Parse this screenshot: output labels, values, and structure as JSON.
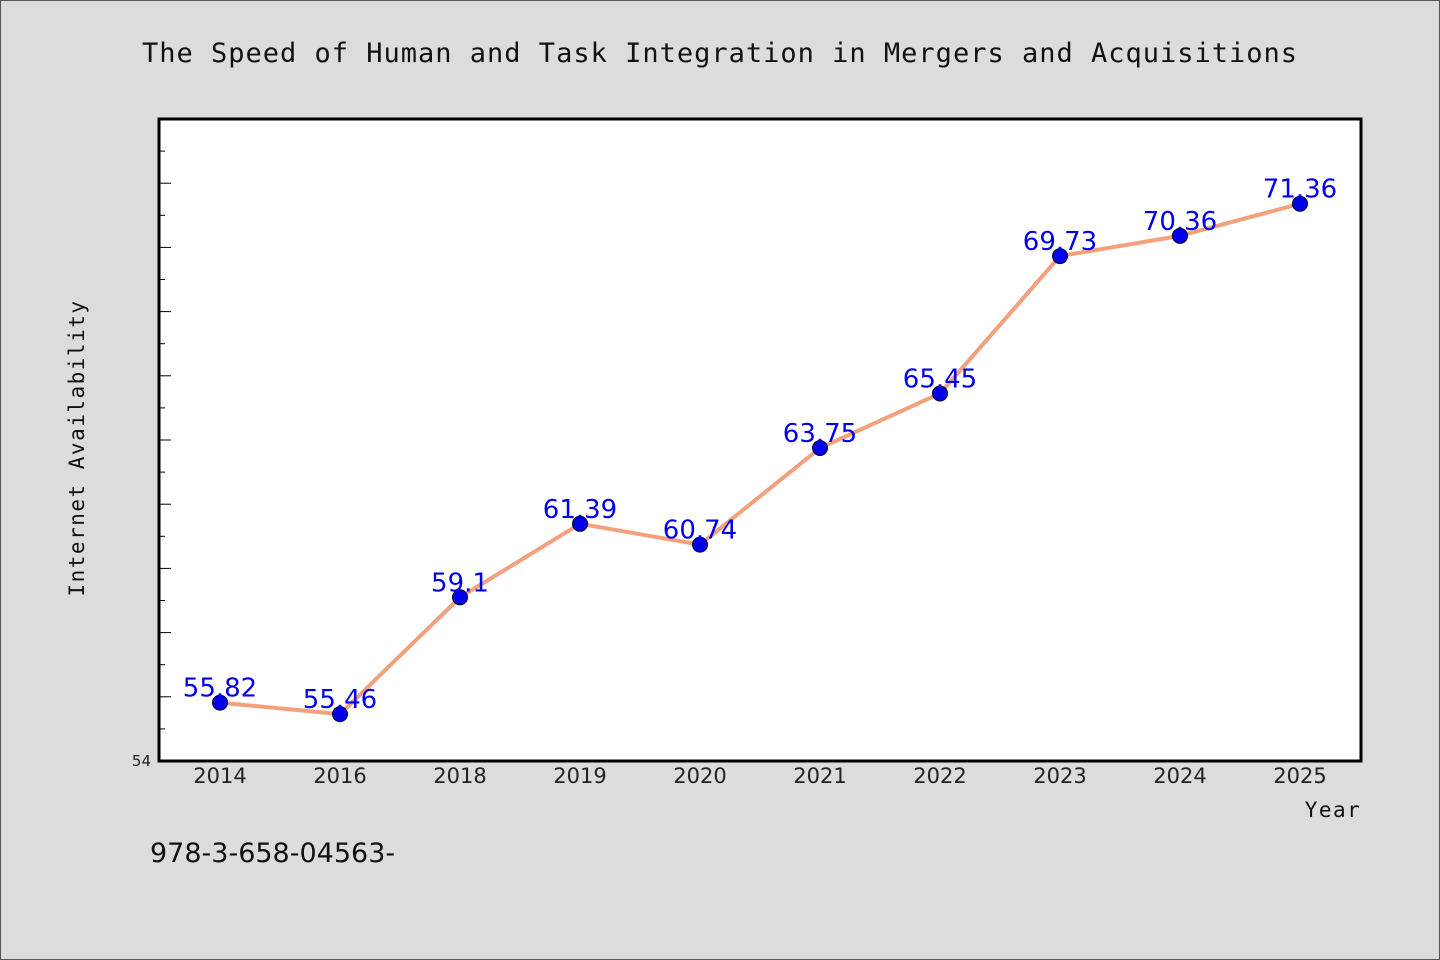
{
  "footer_text": "978-3-658-04563-",
  "chart_data": {
    "type": "line",
    "title": "The Speed of Human and Task Integration in Mergers and Acquisitions",
    "xlabel": "Year",
    "ylabel": "Internet Availability",
    "categories": [
      "2014",
      "2016",
      "2018",
      "2019",
      "2020",
      "2021",
      "2022",
      "2023",
      "2024",
      "2025"
    ],
    "series": [
      {
        "values": [
          55.82,
          55.46,
          59.1,
          61.39,
          60.74,
          63.75,
          65.45,
          69.73,
          70.36,
          71.36
        ]
      }
    ],
    "data_labels": [
      "55.82",
      "55.46",
      "59.1",
      "61.39",
      "60.74",
      "63.75",
      "65.45",
      "69.73",
      "70.36",
      "71.36"
    ],
    "ylim": [
      54,
      74
    ],
    "y_tick_labels": [
      "54"
    ],
    "grid": false,
    "legend": "none",
    "line_color": "#f4a07c",
    "marker_color": "#0000ee",
    "label_color": "#0000ee",
    "plot_background": "#ffffff",
    "page_background": "#dcdcdc"
  }
}
